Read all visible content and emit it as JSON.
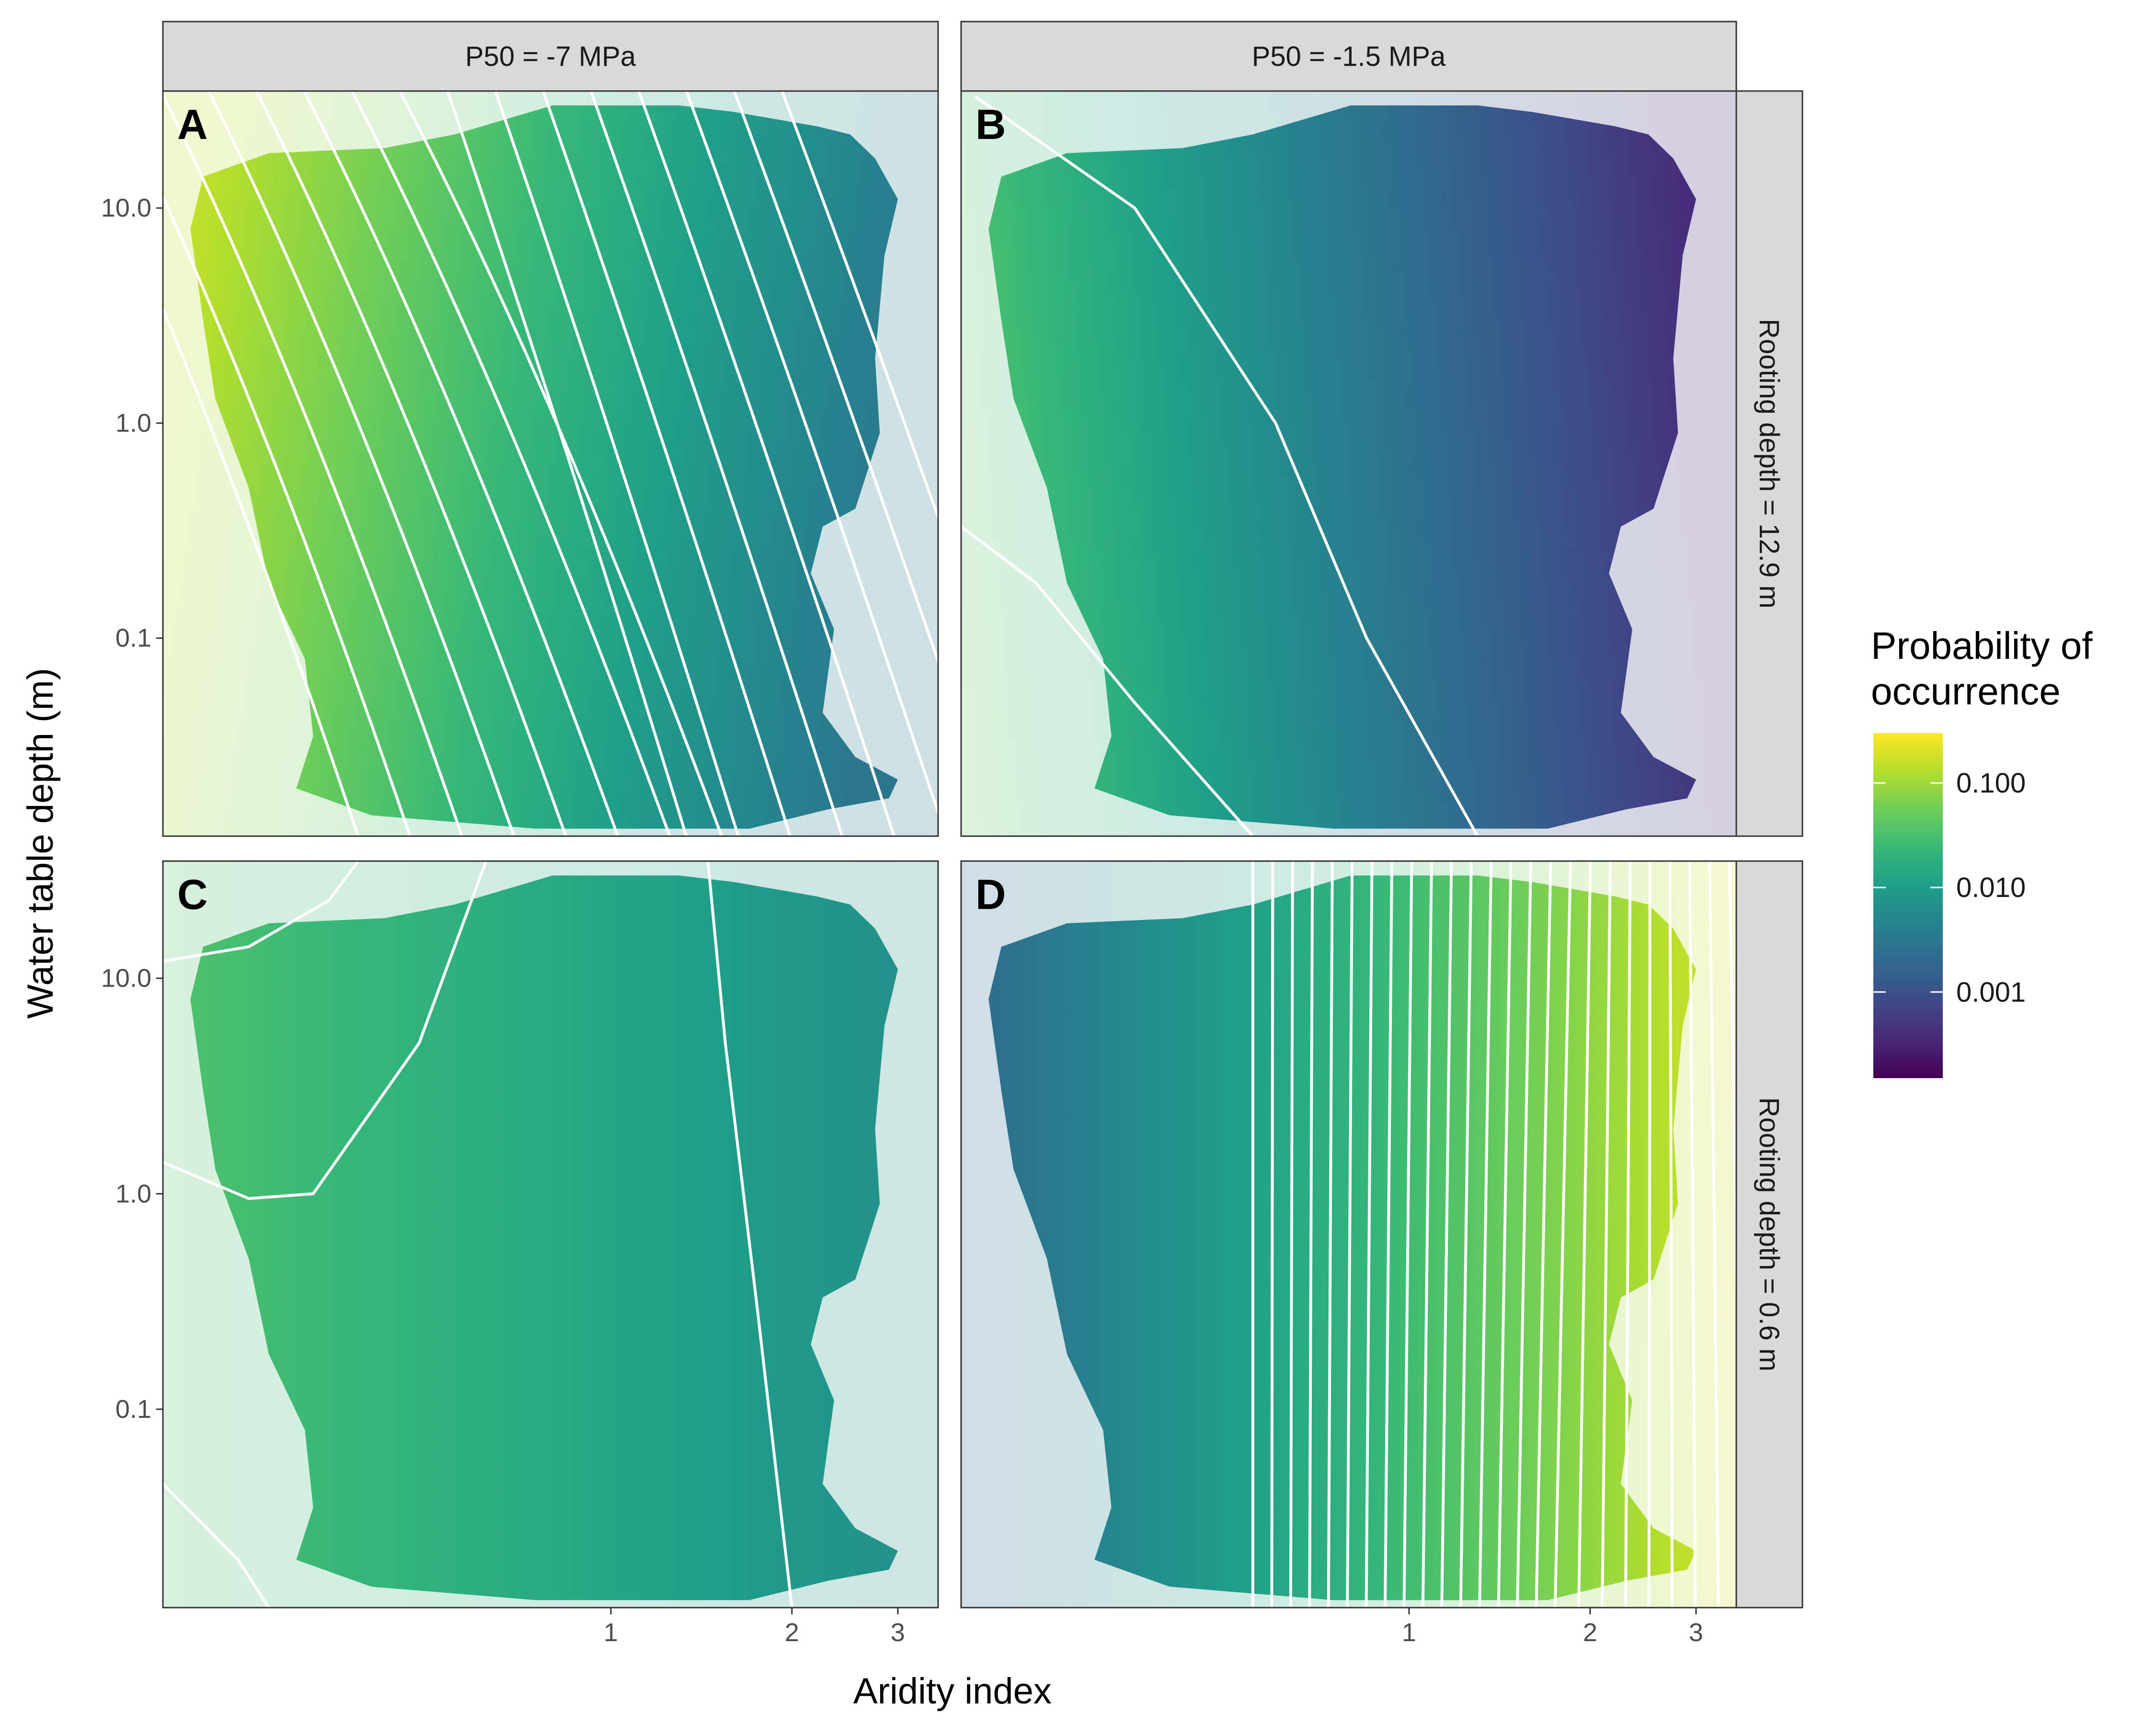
{
  "chart_data": {
    "type": "heatmap",
    "xlabel": "Aridity index",
    "ylabel": "Water table depth (m)",
    "x_scale": "log",
    "y_scale": "log",
    "x_ticks": [
      "1",
      "2",
      "3"
    ],
    "y_ticks": [
      "10.0",
      "1.0",
      "0.1"
    ],
    "column_facets": [
      "P50 = -7 MPa",
      "P50 = -1.5 MPa"
    ],
    "row_facets": [
      "Rooting depth = 12.9 m",
      "Rooting depth = 0.6 m"
    ],
    "legend": {
      "title_lines": [
        "Probability of",
        "occurrence"
      ],
      "scale": "log",
      "colormap": "viridis",
      "ticks": [
        "0.100",
        "0.010",
        "0.001"
      ],
      "position": "right"
    },
    "panels": [
      {
        "label": "A",
        "p50": "P50 = -7 MPa",
        "rooting": "Rooting depth = 12.9 m",
        "pattern": "highest probability at low aridity index and deep water table; decreases toward high aridity",
        "prob_range": [
          0.003,
          0.15
        ]
      },
      {
        "label": "B",
        "p50": "P50 = -1.5 MPa",
        "rooting": "Rooting depth = 12.9 m",
        "pattern": "probability decreases strongly with increasing aridity index",
        "prob_range": [
          0.0004,
          0.05
        ]
      },
      {
        "label": "C",
        "p50": "P50 = -7 MPa",
        "rooting": "Rooting depth = 0.6 m",
        "pattern": "nearly uniform moderate probability, slight peak at low aridity and shallow water table",
        "prob_range": [
          0.005,
          0.04
        ]
      },
      {
        "label": "D",
        "p50": "P50 = -1.5 MPa",
        "rooting": "Rooting depth = 0.6 m",
        "pattern": "probability increases strongly with aridity index",
        "prob_range": [
          0.002,
          0.2
        ]
      }
    ]
  }
}
